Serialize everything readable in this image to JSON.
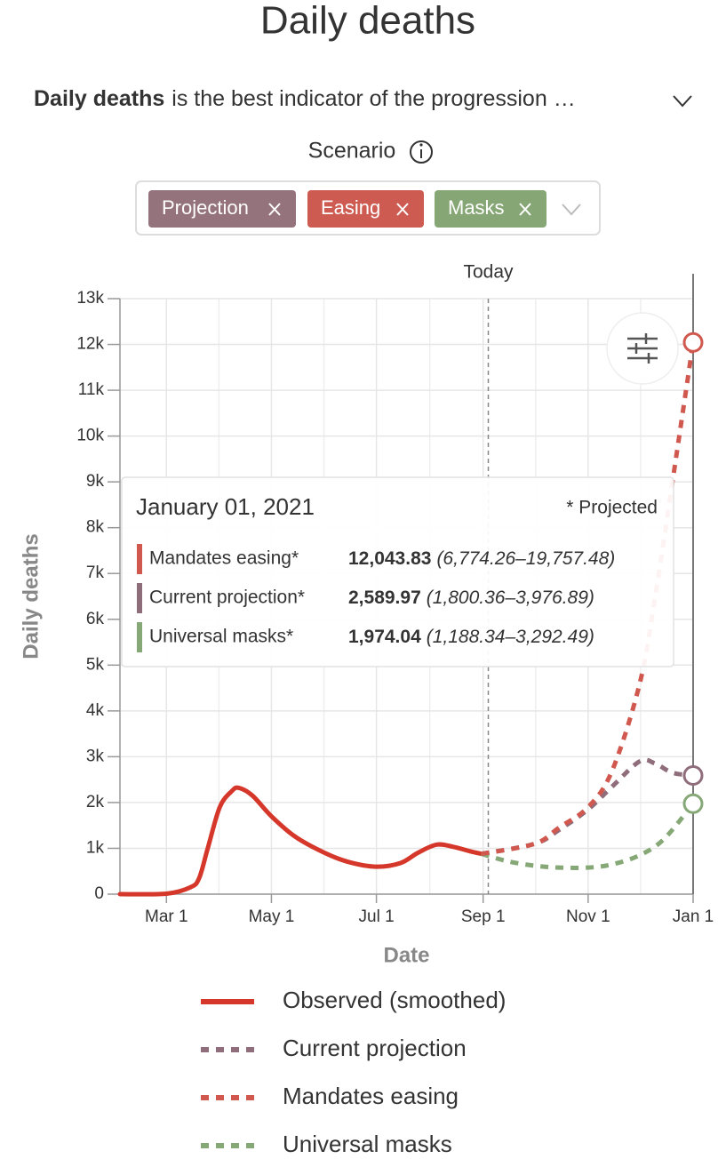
{
  "header": {
    "title": "Daily deaths",
    "description_bold": "Daily deaths",
    "description": "is the best indicator of the progression …",
    "scenario_label": "Scenario"
  },
  "chips": [
    "Projection",
    "Easing",
    "Masks"
  ],
  "chip_colors": [
    "#95737d",
    "#cd5b51",
    "#86a775"
  ],
  "chart_data": {
    "type": "line",
    "y_label": "Daily deaths",
    "x_label": "Date",
    "xlim": [
      "2020-02-03",
      "2021-01-01"
    ],
    "xticks": [
      {
        "value": "2020-03-01",
        "label": "Mar 1"
      },
      {
        "value": "2020-05-01",
        "label": "May 1"
      },
      {
        "value": "2020-07-01",
        "label": "Jul 1"
      },
      {
        "value": "2020-09-01",
        "label": "Sep 1"
      },
      {
        "value": "2020-11-01",
        "label": "Nov 1"
      },
      {
        "value": "2021-01-01",
        "label": "Jan 1"
      }
    ],
    "ylim": [
      0,
      13000
    ],
    "yticks": [
      0,
      {
        "value": 1000,
        "label": "1k"
      },
      {
        "value": 2000,
        "label": "2k"
      },
      {
        "value": 3000,
        "label": "3k"
      },
      {
        "value": 4000,
        "label": "4k"
      },
      {
        "value": 5000,
        "label": "5k"
      },
      {
        "value": 6000,
        "label": "6k"
      },
      {
        "value": 7000,
        "label": "7k"
      },
      {
        "value": 8000,
        "label": "8k"
      },
      {
        "value": 9000,
        "label": "9k"
      },
      {
        "value": 10000,
        "label": "10k"
      },
      {
        "value": 11000,
        "label": "11k"
      },
      {
        "value": 12000,
        "label": "12k"
      },
      {
        "value": 13000,
        "label": "13k"
      }
    ],
    "grid": true,
    "today": {
      "label": "Today",
      "x": "2020-09-04"
    },
    "series": [
      {
        "name": "Observed (smoothed)",
        "color": "#d5372a",
        "dashed": false,
        "x": [
          "2020-02-03",
          "2020-03-01",
          "2020-03-15",
          "2020-03-20",
          "2020-03-25",
          "2020-04-01",
          "2020-04-08",
          "2020-04-12",
          "2020-04-20",
          "2020-05-01",
          "2020-05-15",
          "2020-06-01",
          "2020-06-15",
          "2020-07-01",
          "2020-07-15",
          "2020-07-25",
          "2020-08-05",
          "2020-08-15",
          "2020-08-25",
          "2020-08-31"
        ],
        "values": [
          0,
          10,
          150,
          350,
          1000,
          1900,
          2250,
          2320,
          2150,
          1700,
          1250,
          900,
          700,
          600,
          680,
          900,
          1080,
          1030,
          930,
          880
        ]
      },
      {
        "name": "Current projection",
        "color": "#8f6d7a",
        "dashed": true,
        "x": [
          "2020-08-31",
          "2020-10-01",
          "2020-10-15",
          "2020-11-01",
          "2020-11-15",
          "2020-12-01",
          "2020-12-10",
          "2020-12-20",
          "2021-01-01"
        ],
        "values": [
          880,
          1100,
          1400,
          1850,
          2350,
          2900,
          2850,
          2650,
          2589.97
        ]
      },
      {
        "name": "Mandates easing",
        "color": "#d0584f",
        "dashed": true,
        "x": [
          "2020-08-31",
          "2020-10-01",
          "2020-10-15",
          "2020-11-01",
          "2020-11-15",
          "2020-12-01",
          "2020-12-10",
          "2020-12-20",
          "2021-01-01"
        ],
        "values": [
          880,
          1100,
          1450,
          1900,
          2700,
          4600,
          6500,
          9000,
          12043.83
        ]
      },
      {
        "name": "Universal masks",
        "color": "#86a877",
        "dashed": true,
        "x": [
          "2020-08-31",
          "2020-09-15",
          "2020-10-01",
          "2020-10-15",
          "2020-11-01",
          "2020-11-15",
          "2020-12-01",
          "2020-12-15",
          "2021-01-01"
        ],
        "values": [
          880,
          720,
          620,
          580,
          580,
          650,
          850,
          1200,
          1974.04
        ]
      }
    ],
    "tooltip": {
      "date": "January 01, 2021",
      "note": "* Projected",
      "rows": [
        {
          "name": "Mandates easing*",
          "value": "12,043.83",
          "range": "(6,774.26–19,757.48)",
          "color": "#d0584f"
        },
        {
          "name": "Current projection*",
          "value": "2,589.97",
          "range": "(1,800.36–3,976.89)",
          "color": "#8f6d7a"
        },
        {
          "name": "Universal masks*",
          "value": "1,974.04",
          "range": "(1,188.34–3,292.49)",
          "color": "#86a877"
        }
      ]
    }
  }
}
